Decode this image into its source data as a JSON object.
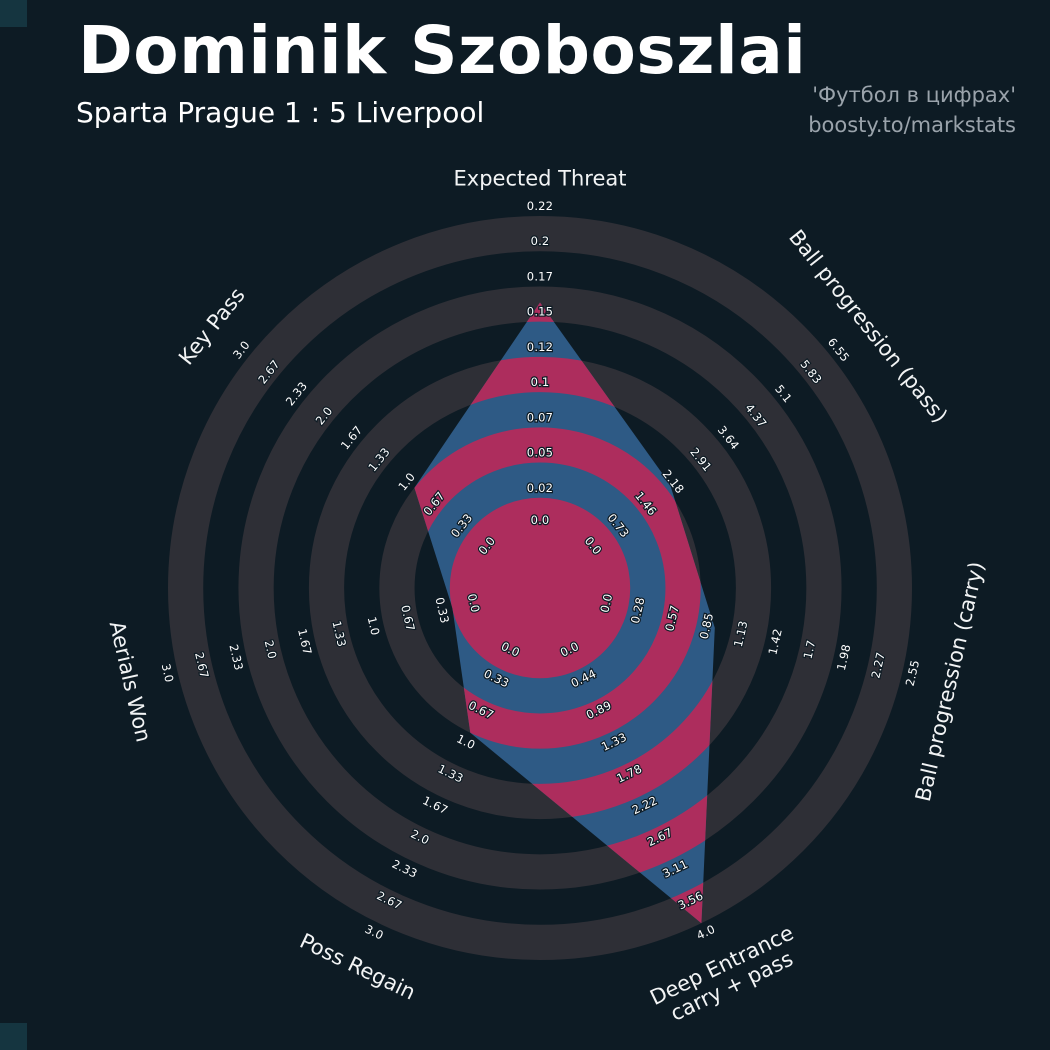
{
  "header": {
    "title": "Dominik Szoboszlai",
    "subtitle": "Sparta Prague 1 : 5 Liverpool",
    "credit_line1": "'Футбол в цифрах'",
    "credit_line2": "boosty.to/markstats"
  },
  "colors": {
    "background": "#0d1b24",
    "corner_marker": "#153540",
    "credit_text": "#9aa3ab"
  },
  "chart_data": {
    "type": "radar",
    "title": "Dominik Szoboszlai",
    "subtitle": "Sparta Prague 1 : 5 Liverpool",
    "rings": 9,
    "legend_position": "none",
    "grid": "concentric-rings",
    "colors": {
      "ring": "#2e2f36",
      "polygon_fill": "#2e5a85",
      "ring_overlay": "#ad2d5d",
      "tick_text": "#ffffff",
      "label_text": "#f2f4f5"
    },
    "params": [
      {
        "label": "Expected Threat",
        "value": 0.16,
        "max": 0.22,
        "ticks": [
          "0.0",
          "0.02",
          "0.05",
          "0.07",
          "0.1",
          "0.12",
          "0.15",
          "0.17",
          "0.2",
          "0.22"
        ]
      },
      {
        "label": "Ball progression (pass)",
        "value": 2.3,
        "max": 6.55,
        "ticks": [
          "0.0",
          "0.73",
          "1.46",
          "2.18",
          "2.91",
          "3.64",
          "4.37",
          "5.1",
          "5.83",
          "6.55"
        ]
      },
      {
        "label": "Ball progression (carry)",
        "value": 1.0,
        "max": 2.55,
        "ticks": [
          "0.0",
          "0.28",
          "0.57",
          "0.85",
          "1.13",
          "1.42",
          "1.7",
          "1.98",
          "2.27",
          "2.55"
        ]
      },
      {
        "label": "Deep Entrance\ncarry + pass",
        "value": 4.0,
        "max": 4.0,
        "ticks": [
          "0.0",
          "0.44",
          "0.89",
          "1.33",
          "1.78",
          "2.22",
          "2.67",
          "3.11",
          "3.56",
          "4.0"
        ]
      },
      {
        "label": "Poss Regain",
        "value": 1.0,
        "max": 3.0,
        "ticks": [
          "0.0",
          "0.33",
          "0.67",
          "1.0",
          "1.33",
          "1.67",
          "2.0",
          "2.33",
          "2.67",
          "3.0"
        ]
      },
      {
        "label": "Aerials Won",
        "value": 0.33,
        "max": 3.0,
        "ticks": [
          "0.0",
          "0.33",
          "0.67",
          "1.0",
          "1.33",
          "1.67",
          "2.0",
          "2.33",
          "2.67",
          "3.0"
        ]
      },
      {
        "label": "Key Pass",
        "value": 1.0,
        "max": 3.0,
        "ticks": [
          "0.0",
          "0.33",
          "0.67",
          "1.0",
          "1.33",
          "1.67",
          "2.0",
          "2.33",
          "2.67",
          "3.0"
        ]
      }
    ]
  }
}
